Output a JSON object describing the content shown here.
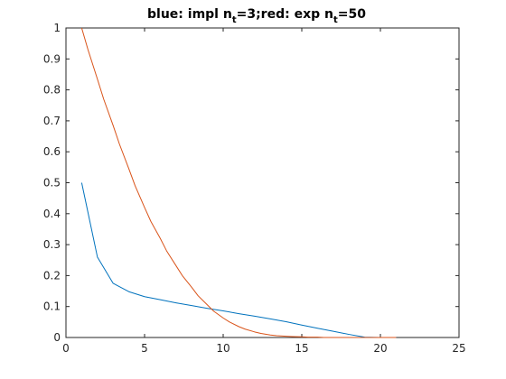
{
  "chart_data": {
    "type": "line",
    "title_parts": {
      "p1": "blue: impl n",
      "sub1": "t",
      "p2": "=3;red: exp n",
      "sub2": "t",
      "p3": "=50"
    },
    "xlabel": "",
    "ylabel": "",
    "xlim": [
      0,
      25
    ],
    "ylim": [
      0,
      1
    ],
    "xticks": [
      0,
      5,
      10,
      15,
      20,
      25
    ],
    "yticks": [
      0,
      0.1,
      0.2,
      0.3,
      0.4,
      0.5,
      0.6,
      0.7,
      0.8,
      0.9,
      1
    ],
    "grid": false,
    "series": [
      {
        "color": "#0072BD",
        "x": [
          1,
          2,
          3,
          4,
          5,
          6,
          7,
          8,
          9,
          10,
          11,
          12,
          13,
          14,
          15,
          16,
          17,
          18,
          19,
          20,
          21
        ],
        "y": [
          0.5,
          0.26,
          0.175,
          0.148,
          0.132,
          0.122,
          0.112,
          0.103,
          0.094,
          0.086,
          0.077,
          0.069,
          0.06,
          0.051,
          0.04,
          0.03,
          0.02,
          0.01,
          0.001,
          0.0,
          0.0
        ]
      },
      {
        "color": "#D95319",
        "x": [
          1,
          1.4,
          2,
          2.4,
          3,
          3.4,
          4,
          4.4,
          5,
          5.4,
          6,
          6.4,
          7,
          7.4,
          8,
          8.4,
          9,
          9.4,
          10,
          10.4,
          11,
          11.4,
          12,
          12.4,
          13,
          13.4,
          14,
          14.4,
          15,
          15.4,
          16,
          16.4,
          17,
          17.4,
          18,
          18.4,
          19,
          19.4,
          20,
          20.4,
          21
        ],
        "y": [
          1.0,
          0.93,
          0.835,
          0.77,
          0.685,
          0.625,
          0.545,
          0.49,
          0.42,
          0.375,
          0.32,
          0.28,
          0.232,
          0.2,
          0.162,
          0.135,
          0.105,
          0.085,
          0.063,
          0.05,
          0.035,
          0.027,
          0.018,
          0.013,
          0.008,
          0.006,
          0.004,
          0.003,
          0.002,
          0.001,
          0.001,
          0.0,
          0.0,
          0.0,
          0.0,
          0.0,
          0.0,
          0.0,
          0.0,
          0.0,
          0.0
        ]
      }
    ]
  }
}
